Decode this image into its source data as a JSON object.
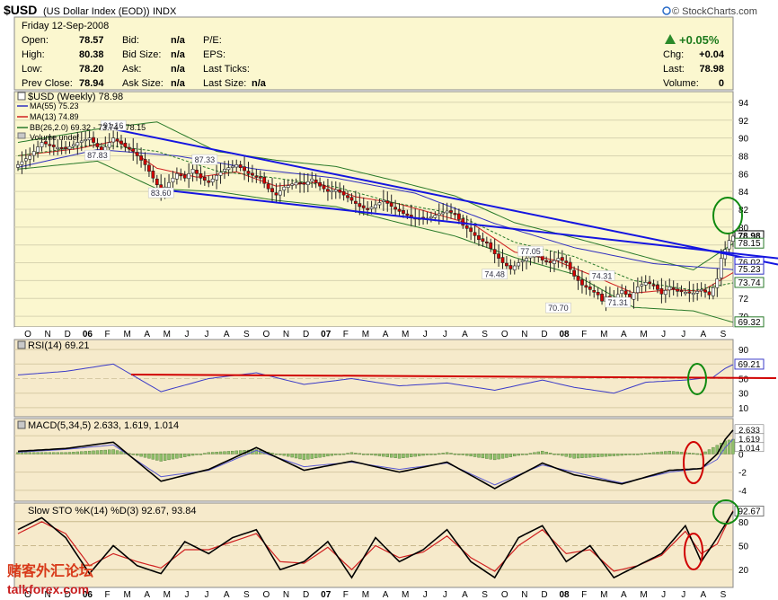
{
  "header": {
    "symbol": "$USD",
    "name": "(US Dollar Index (EOD))",
    "exchange": "INDX",
    "copyright": "© StockCharts.com",
    "date": "Friday   12-Sep-2008"
  },
  "quote": {
    "fields": [
      {
        "label": "Open:",
        "value": "78.57"
      },
      {
        "label": "High:",
        "value": "80.38"
      },
      {
        "label": "Low:",
        "value": "78.20"
      },
      {
        "label": "Prev Close:",
        "value": "78.94"
      },
      {
        "label": "Bid:",
        "value": "n/a"
      },
      {
        "label": "Bid Size:",
        "value": "n/a"
      },
      {
        "label": "Ask:",
        "value": "n/a"
      },
      {
        "label": "Ask Size:",
        "value": "n/a"
      },
      {
        "label": "P/E:",
        "value": ""
      },
      {
        "label": "EPS:",
        "value": ""
      },
      {
        "label": "Last Ticks:",
        "value": ""
      },
      {
        "label": "Last Size:",
        "value": "n/a"
      },
      {
        "label": "Chg:",
        "value": "+0.04"
      },
      {
        "label": "Last:",
        "value": "78.98"
      },
      {
        "label": "Volume:",
        "value": "0"
      }
    ],
    "change_pct": "+0.05%"
  },
  "colors": {
    "price_bg": "#fbf7cf",
    "ind_bg": "#f6eacb",
    "up": "#ffffff",
    "down": "#d40000",
    "ma55": "#3030c0",
    "ma13": "#d02020",
    "bb": "#2a7a2a",
    "trend": "#1515e0",
    "circle_green": "#108a10",
    "circle_red": "#d00000",
    "arrow_up": "#2a8a2a"
  },
  "months": [
    "O",
    "N",
    "D",
    "06",
    "F",
    "M",
    "A",
    "M",
    "J",
    "J",
    "A",
    "S",
    "O",
    "N",
    "D",
    "07",
    "F",
    "M",
    "A",
    "M",
    "J",
    "J",
    "A",
    "S",
    "O",
    "N",
    "D",
    "08",
    "F",
    "M",
    "A",
    "M",
    "J",
    "J",
    "A",
    "S"
  ],
  "chart_data": [
    {
      "type": "candlestick",
      "title": "$USD (Weekly) 78.98",
      "legend": [
        "MA(55) 75.23",
        "MA(13) 74.89",
        "BB(26,2.0) 69.32 - 73.74 - 78.15",
        "Volume undef"
      ],
      "y_ticks": [
        70,
        72,
        74,
        76,
        78,
        80,
        82,
        84,
        86,
        88,
        90,
        92,
        94
      ],
      "ylim": [
        69,
        95
      ],
      "price_labels": [
        "78.98",
        "78.15",
        "76.02",
        "75.23",
        "73.74",
        "69.32"
      ],
      "annotations": [
        {
          "text": "91.16",
          "week": 24,
          "value": 91.16
        },
        {
          "text": "87.83",
          "week": 20,
          "value": 87.83
        },
        {
          "text": "87.33",
          "week": 47,
          "value": 87.33
        },
        {
          "text": "83.60",
          "week": 36,
          "value": 83.6
        },
        {
          "text": "77.05",
          "week": 129,
          "value": 77.05
        },
        {
          "text": "74.48",
          "week": 120,
          "value": 74.48
        },
        {
          "text": "74.31",
          "week": 147,
          "value": 74.31
        },
        {
          "text": "71.31",
          "week": 151,
          "value": 71.31
        },
        {
          "text": "70.70",
          "week": 136,
          "value": 70.7
        }
      ],
      "anchors": [
        [
          0,
          87.0
        ],
        [
          3,
          88.0
        ],
        [
          6,
          89.5
        ],
        [
          9,
          89.0
        ],
        [
          12,
          88.8
        ],
        [
          15,
          89.5
        ],
        [
          18,
          90.0
        ],
        [
          21,
          88.5
        ],
        [
          24,
          90.0
        ],
        [
          27,
          89.0
        ],
        [
          29,
          88.5
        ],
        [
          32,
          87.0
        ],
        [
          34,
          85.5
        ],
        [
          36,
          84.0
        ],
        [
          38,
          85.0
        ],
        [
          40,
          86.0
        ],
        [
          42,
          85.5
        ],
        [
          44,
          86.5
        ],
        [
          46,
          85.5
        ],
        [
          48,
          85.0
        ],
        [
          50,
          85.8
        ],
        [
          52,
          86.5
        ],
        [
          55,
          87.0
        ],
        [
          58,
          86.0
        ],
        [
          61,
          85.5
        ],
        [
          63,
          84.3
        ],
        [
          65,
          83.6
        ],
        [
          67,
          84.5
        ],
        [
          70,
          85.0
        ],
        [
          72,
          84.8
        ],
        [
          74,
          85.4
        ],
        [
          76,
          84.6
        ],
        [
          78,
          84.0
        ],
        [
          80,
          84.2
        ],
        [
          82,
          83.6
        ],
        [
          84,
          83.0
        ],
        [
          86,
          82.3
        ],
        [
          88,
          82.0
        ],
        [
          90,
          82.5
        ],
        [
          92,
          83.0
        ],
        [
          95,
          82.0
        ],
        [
          98,
          81.3
        ],
        [
          100,
          81.0
        ],
        [
          103,
          81.0
        ],
        [
          106,
          81.5
        ],
        [
          108,
          81.8
        ],
        [
          110,
          81.5
        ],
        [
          112,
          80.2
        ],
        [
          114,
          79.5
        ],
        [
          116,
          78.6
        ],
        [
          118,
          78.2
        ],
        [
          120,
          77.0
        ],
        [
          122,
          76.0
        ],
        [
          124,
          75.3
        ],
        [
          126,
          76.0
        ],
        [
          128,
          76.5
        ],
        [
          130,
          77.0
        ],
        [
          132,
          76.3
        ],
        [
          134,
          76.0
        ],
        [
          136,
          76.5
        ],
        [
          138,
          76.0
        ],
        [
          140,
          74.5
        ],
        [
          142,
          73.5
        ],
        [
          144,
          73.0
        ],
        [
          146,
          72.4
        ],
        [
          147,
          71.7
        ],
        [
          148,
          72.2
        ],
        [
          150,
          72.0
        ],
        [
          152,
          72.9
        ],
        [
          154,
          72.0
        ],
        [
          156,
          73.3
        ],
        [
          158,
          73.8
        ],
        [
          160,
          73.5
        ],
        [
          162,
          72.5
        ],
        [
          164,
          73.3
        ],
        [
          166,
          72.8
        ],
        [
          168,
          72.7
        ],
        [
          170,
          72.6
        ],
        [
          172,
          73.0
        ],
        [
          174,
          72.4
        ],
        [
          175,
          73.2
        ],
        [
          176,
          74.2
        ],
        [
          177,
          76.5
        ],
        [
          178,
          77.5
        ],
        [
          179,
          78.5
        ],
        [
          180,
          78.98
        ]
      ],
      "ma55_anchors": [
        [
          0,
          86.7
        ],
        [
          20,
          88.7
        ],
        [
          40,
          88.0
        ],
        [
          60,
          86.5
        ],
        [
          80,
          85.5
        ],
        [
          100,
          83.8
        ],
        [
          120,
          80.4
        ],
        [
          140,
          77.7
        ],
        [
          160,
          75.9
        ],
        [
          180,
          75.23
        ]
      ],
      "ma13_anchors": [
        [
          0,
          88.0
        ],
        [
          15,
          88.8
        ],
        [
          25,
          89.7
        ],
        [
          35,
          86.6
        ],
        [
          45,
          85.6
        ],
        [
          55,
          86.2
        ],
        [
          65,
          84.6
        ],
        [
          75,
          85.0
        ],
        [
          85,
          83.4
        ],
        [
          95,
          82.7
        ],
        [
          105,
          81.5
        ],
        [
          115,
          80.2
        ],
        [
          125,
          77.2
        ],
        [
          135,
          76.3
        ],
        [
          145,
          74.5
        ],
        [
          155,
          72.6
        ],
        [
          165,
          73.0
        ],
        [
          172,
          72.8
        ],
        [
          180,
          74.89
        ]
      ],
      "bb_upper_anchors": [
        [
          0,
          89.5
        ],
        [
          20,
          91.0
        ],
        [
          35,
          91.8
        ],
        [
          50,
          88.5
        ],
        [
          65,
          87.5
        ],
        [
          80,
          86.8
        ],
        [
          95,
          85.2
        ],
        [
          110,
          83.5
        ],
        [
          125,
          80.5
        ],
        [
          140,
          78.8
        ],
        [
          155,
          77.0
        ],
        [
          170,
          75.2
        ],
        [
          180,
          78.15
        ]
      ],
      "bb_mid_anchors": [
        [
          0,
          88.0
        ],
        [
          20,
          89.3
        ],
        [
          35,
          88.5
        ],
        [
          50,
          86.3
        ],
        [
          65,
          85.5
        ],
        [
          80,
          84.5
        ],
        [
          95,
          82.7
        ],
        [
          110,
          81.5
        ],
        [
          125,
          78.3
        ],
        [
          140,
          76.7
        ],
        [
          155,
          74.0
        ],
        [
          170,
          72.9
        ],
        [
          180,
          73.74
        ]
      ],
      "bb_lower_anchors": [
        [
          0,
          86.5
        ],
        [
          20,
          87.4
        ],
        [
          35,
          84.3
        ],
        [
          50,
          84.0
        ],
        [
          65,
          83.0
        ],
        [
          80,
          82.3
        ],
        [
          95,
          80.6
        ],
        [
          110,
          79.0
        ],
        [
          125,
          76.6
        ],
        [
          140,
          74.7
        ],
        [
          155,
          71.0
        ],
        [
          170,
          70.6
        ],
        [
          180,
          69.32
        ]
      ],
      "trendlines": [
        {
          "from": [
            24,
            91.0
          ],
          "to": [
            212,
            75.8
          ]
        },
        {
          "from": [
            36,
            84.2
          ],
          "to": [
            212,
            76.5
          ]
        }
      ]
    },
    {
      "type": "line",
      "title": "RSI(14) 69.21",
      "y_ticks": [
        10,
        30,
        50,
        70,
        90
      ],
      "ylim": [
        0,
        100
      ],
      "last_label": "69.21",
      "anchors": [
        [
          0,
          55
        ],
        [
          12,
          60
        ],
        [
          24,
          70
        ],
        [
          36,
          32
        ],
        [
          48,
          50
        ],
        [
          60,
          58
        ],
        [
          72,
          42
        ],
        [
          84,
          50
        ],
        [
          96,
          40
        ],
        [
          108,
          44
        ],
        [
          120,
          34
        ],
        [
          132,
          48
        ],
        [
          140,
          38
        ],
        [
          150,
          30
        ],
        [
          158,
          45
        ],
        [
          168,
          48
        ],
        [
          175,
          52
        ],
        [
          178,
          64
        ],
        [
          180,
          69.21
        ]
      ]
    },
    {
      "type": "line",
      "title": "MACD(5,34,5) 2.633, 1.619, 1.014",
      "y_ticks": [
        -4,
        -2,
        0,
        2
      ],
      "ylim": [
        -5,
        3.5
      ],
      "last_labels": [
        "2.633",
        "1.619",
        "1.014"
      ],
      "macd_anchors": [
        [
          0,
          0.3
        ],
        [
          12,
          0.6
        ],
        [
          24,
          1.3
        ],
        [
          36,
          -3.0
        ],
        [
          48,
          -1.7
        ],
        [
          60,
          0.7
        ],
        [
          72,
          -1.8
        ],
        [
          84,
          -0.8
        ],
        [
          96,
          -2.0
        ],
        [
          108,
          -0.9
        ],
        [
          120,
          -3.8
        ],
        [
          132,
          -1.0
        ],
        [
          140,
          -2.3
        ],
        [
          152,
          -3.3
        ],
        [
          164,
          -1.8
        ],
        [
          172,
          -1.6
        ],
        [
          176,
          0.0
        ],
        [
          178,
          1.6
        ],
        [
          180,
          2.633
        ]
      ],
      "signal_anchors": [
        [
          0,
          0.2
        ],
        [
          12,
          0.5
        ],
        [
          24,
          1.0
        ],
        [
          36,
          -2.5
        ],
        [
          48,
          -1.8
        ],
        [
          60,
          0.4
        ],
        [
          72,
          -1.4
        ],
        [
          84,
          -0.9
        ],
        [
          96,
          -1.7
        ],
        [
          108,
          -1.0
        ],
        [
          120,
          -3.4
        ],
        [
          132,
          -1.2
        ],
        [
          140,
          -2.0
        ],
        [
          152,
          -3.2
        ],
        [
          164,
          -2.0
        ],
        [
          172,
          -1.6
        ],
        [
          176,
          -0.6
        ],
        [
          178,
          0.7
        ],
        [
          180,
          1.619
        ]
      ]
    },
    {
      "type": "line",
      "title": "Slow STO %K(14) %D(3) 92.67, 93.84",
      "y_ticks": [
        20,
        50,
        80
      ],
      "ylim": [
        0,
        100
      ],
      "last_labels": [
        "92.67",
        "93.84"
      ],
      "k_anchors": [
        [
          0,
          70
        ],
        [
          6,
          85
        ],
        [
          12,
          60
        ],
        [
          18,
          15
        ],
        [
          24,
          50
        ],
        [
          30,
          25
        ],
        [
          36,
          15
        ],
        [
          42,
          55
        ],
        [
          48,
          40
        ],
        [
          54,
          60
        ],
        [
          60,
          70
        ],
        [
          66,
          20
        ],
        [
          72,
          30
        ],
        [
          78,
          55
        ],
        [
          84,
          10
        ],
        [
          90,
          60
        ],
        [
          96,
          30
        ],
        [
          102,
          45
        ],
        [
          108,
          70
        ],
        [
          114,
          30
        ],
        [
          120,
          10
        ],
        [
          126,
          60
        ],
        [
          132,
          75
        ],
        [
          138,
          30
        ],
        [
          144,
          50
        ],
        [
          150,
          10
        ],
        [
          156,
          25
        ],
        [
          162,
          40
        ],
        [
          168,
          75
        ],
        [
          172,
          30
        ],
        [
          176,
          60
        ],
        [
          180,
          92.67
        ]
      ],
      "d_anchors": [
        [
          0,
          65
        ],
        [
          6,
          80
        ],
        [
          12,
          65
        ],
        [
          18,
          25
        ],
        [
          24,
          40
        ],
        [
          30,
          30
        ],
        [
          36,
          22
        ],
        [
          42,
          45
        ],
        [
          48,
          45
        ],
        [
          54,
          55
        ],
        [
          60,
          65
        ],
        [
          66,
          30
        ],
        [
          72,
          28
        ],
        [
          78,
          48
        ],
        [
          84,
          20
        ],
        [
          90,
          50
        ],
        [
          96,
          35
        ],
        [
          102,
          42
        ],
        [
          108,
          62
        ],
        [
          114,
          35
        ],
        [
          120,
          18
        ],
        [
          126,
          50
        ],
        [
          132,
          70
        ],
        [
          138,
          40
        ],
        [
          144,
          45
        ],
        [
          150,
          18
        ],
        [
          156,
          25
        ],
        [
          162,
          38
        ],
        [
          168,
          68
        ],
        [
          172,
          40
        ],
        [
          176,
          52
        ],
        [
          180,
          93.84
        ]
      ]
    }
  ],
  "watermark": {
    "line1": "赌客外汇论坛",
    "line2": "talkforex.com"
  }
}
